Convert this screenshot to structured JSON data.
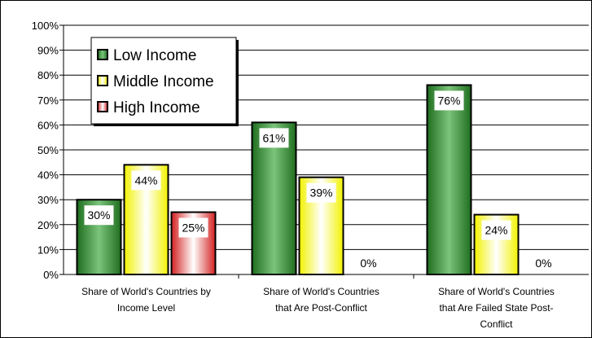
{
  "chart_data": {
    "type": "bar",
    "categories": [
      [
        "Share of World's Countries by",
        "Income Level"
      ],
      [
        "Share of World's Countries",
        "that Are Post-Conflict"
      ],
      [
        "Share of World's Countries",
        "that Are Failed State Post-",
        "Conflict"
      ]
    ],
    "series": [
      {
        "name": "Low Income",
        "values": [
          30,
          61,
          76
        ],
        "labels": [
          "30%",
          "61%",
          "76%"
        ]
      },
      {
        "name": "Middle Income",
        "values": [
          44,
          39,
          24
        ],
        "labels": [
          "44%",
          "39%",
          "24%"
        ]
      },
      {
        "name": "High Income",
        "values": [
          25,
          0,
          0
        ],
        "labels": [
          "25%",
          "0%",
          "0%"
        ]
      }
    ],
    "yticks": [
      "0%",
      "10%",
      "20%",
      "30%",
      "40%",
      "50%",
      "60%",
      "70%",
      "80%",
      "90%",
      "100%"
    ],
    "ylim": [
      0,
      100
    ],
    "grid": true,
    "legend": "top-left",
    "colors": {
      "Low Income": "#2e8b2e",
      "Middle Income": "#ffff33",
      "High Income": "#e83a3a"
    }
  }
}
